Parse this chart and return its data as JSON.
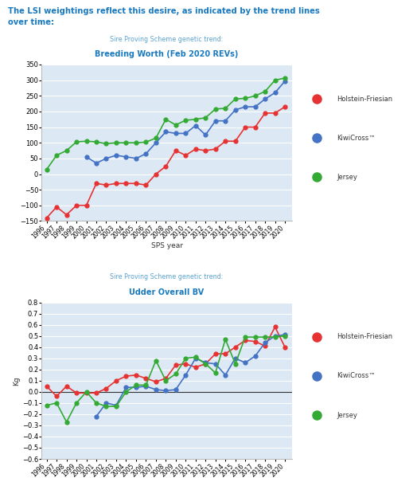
{
  "header_text": "The LSI weightings reflect this desire, as indicated by the trend lines\nover time:",
  "header_color": "#1a7abf",
  "chart1_subtitle": "Sire Proving Scheme genetic trend:",
  "chart1_title": "Breeding Worth (Feb 2020 REVs)",
  "chart2_subtitle": "Sire Proving Scheme genetic trend:",
  "chart2_title": "Udder Overall BV",
  "xlabel": "SPS year",
  "chart2_ylabel": "Kg",
  "years1": [
    1996,
    1997,
    1998,
    1999,
    2000,
    2001,
    2002,
    2003,
    2004,
    2005,
    2006,
    2007,
    2008,
    2009,
    2010,
    2011,
    2012,
    2013,
    2014,
    2015,
    2016,
    2017,
    2018,
    2019,
    2020
  ],
  "years2": [
    1996,
    1997,
    1998,
    1999,
    2000,
    2001,
    2002,
    2003,
    2004,
    2005,
    2006,
    2007,
    2008,
    2009,
    2010,
    2011,
    2012,
    2013,
    2014,
    2015,
    2016,
    2017,
    2018,
    2019,
    2020
  ],
  "bw_hf": [
    -140,
    -105,
    -130,
    -100,
    -100,
    -30,
    -35,
    -30,
    -30,
    -30,
    -35,
    0,
    25,
    75,
    60,
    80,
    75,
    80,
    105,
    105,
    150,
    150,
    195,
    195,
    215
  ],
  "bw_kc": [
    null,
    null,
    null,
    null,
    55,
    35,
    50,
    60,
    55,
    50,
    65,
    100,
    135,
    130,
    130,
    155,
    125,
    170,
    170,
    205,
    215,
    215,
    240,
    260,
    297
  ],
  "bw_jersey": [
    15,
    60,
    75,
    103,
    105,
    103,
    97,
    100,
    100,
    100,
    102,
    115,
    175,
    157,
    172,
    175,
    180,
    208,
    210,
    240,
    242,
    250,
    264,
    300,
    307
  ],
  "ub_hf": [
    0.05,
    -0.04,
    0.05,
    -0.01,
    -0.01,
    -0.01,
    0.03,
    0.1,
    0.14,
    0.15,
    0.12,
    0.09,
    0.12,
    0.24,
    0.25,
    0.22,
    0.25,
    0.34,
    0.34,
    0.4,
    0.46,
    0.45,
    0.41,
    0.58,
    0.4
  ],
  "ub_kc": [
    null,
    null,
    null,
    null,
    null,
    -0.22,
    -0.1,
    -0.12,
    0.04,
    0.04,
    0.05,
    0.02,
    0.01,
    0.02,
    0.15,
    0.3,
    0.26,
    0.25,
    0.15,
    0.3,
    0.26,
    0.32,
    0.44,
    0.5,
    0.51
  ],
  "ub_jersey": [
    -0.12,
    -0.1,
    -0.27,
    -0.1,
    0.0,
    -0.1,
    -0.13,
    -0.13,
    0.0,
    0.06,
    0.06,
    0.28,
    0.1,
    0.16,
    0.3,
    0.31,
    0.25,
    0.17,
    0.47,
    0.25,
    0.49,
    0.49,
    0.49,
    0.49,
    0.5
  ],
  "color_hf": "#e63232",
  "color_kc": "#4472c4",
  "color_jersey": "#33aa33",
  "legend_labels": [
    "Holstein-Friesian",
    "KiwiCross™",
    "Jersey"
  ],
  "bg_color": "#ffffff",
  "plot_bg": "#dce9f5",
  "title_color": "#1a7abf",
  "subtitle_color": "#5ba3d0",
  "chart1_ylim": [
    -150,
    350
  ],
  "chart1_yticks": [
    -150,
    -100,
    -50,
    0,
    50,
    100,
    150,
    200,
    250,
    300,
    350
  ],
  "chart2_ylim": [
    -0.6,
    0.8
  ],
  "chart2_yticks": [
    -0.6,
    -0.5,
    -0.4,
    -0.3,
    -0.2,
    -0.1,
    0.0,
    0.1,
    0.2,
    0.3,
    0.4,
    0.5,
    0.6,
    0.7,
    0.8
  ],
  "grid_color": "#ffffff",
  "marker_size": 3.5,
  "line_width": 1.2
}
